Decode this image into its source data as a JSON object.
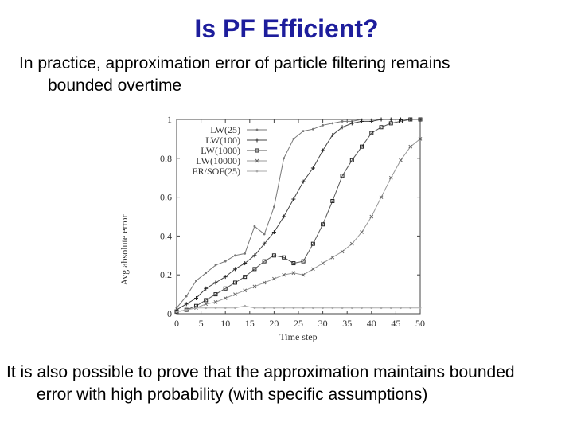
{
  "slide": {
    "title": "Is PF Efficient?",
    "para1": {
      "line1": "In practice, approximation error of particle filtering remains",
      "line2": "bounded overtime"
    },
    "para2": {
      "line1": "It is also possible to prove that the approximation maintains bounded",
      "line2": "error with high probability (with specific assumptions)"
    }
  },
  "chart_data": {
    "type": "line",
    "xlabel": "Time step",
    "ylabel": "Avg absolute error",
    "xlim": [
      0,
      50
    ],
    "ylim": [
      0,
      1
    ],
    "xticks": [
      0,
      5,
      10,
      15,
      20,
      25,
      30,
      35,
      40,
      45,
      50
    ],
    "yticks": [
      0,
      0.2,
      0.4,
      0.6,
      0.8,
      1
    ],
    "ytick_labels": [
      "0",
      "0.2",
      "0.4",
      "0.6",
      "0.8",
      "1"
    ],
    "legend_position": "top-left",
    "grid": false,
    "x": [
      0,
      2,
      4,
      6,
      8,
      10,
      12,
      14,
      16,
      18,
      20,
      22,
      24,
      26,
      28,
      30,
      32,
      34,
      36,
      38,
      40,
      42,
      44,
      46,
      48,
      50
    ],
    "series": [
      {
        "name": "LW(25)",
        "marker": "dot",
        "values": [
          0.03,
          0.09,
          0.17,
          0.21,
          0.25,
          0.27,
          0.3,
          0.31,
          0.45,
          0.41,
          0.55,
          0.8,
          0.9,
          0.94,
          0.95,
          0.97,
          0.98,
          0.99,
          0.99,
          1.0,
          1.0,
          1.0,
          1.0,
          1.0,
          1.0,
          1.0
        ]
      },
      {
        "name": "LW(100)",
        "marker": "plus",
        "values": [
          0.02,
          0.05,
          0.08,
          0.13,
          0.16,
          0.19,
          0.23,
          0.26,
          0.3,
          0.36,
          0.42,
          0.5,
          0.59,
          0.68,
          0.75,
          0.84,
          0.92,
          0.96,
          0.98,
          0.99,
          0.99,
          1.0,
          1.0,
          1.0,
          1.0,
          1.0
        ]
      },
      {
        "name": "LW(1000)",
        "marker": "square",
        "values": [
          0.01,
          0.02,
          0.04,
          0.07,
          0.1,
          0.13,
          0.16,
          0.19,
          0.23,
          0.27,
          0.3,
          0.29,
          0.26,
          0.27,
          0.36,
          0.46,
          0.58,
          0.71,
          0.79,
          0.86,
          0.93,
          0.96,
          0.98,
          0.99,
          1.0,
          1.0
        ]
      },
      {
        "name": "LW(10000)",
        "marker": "x",
        "values": [
          0.01,
          0.02,
          0.03,
          0.05,
          0.06,
          0.08,
          0.1,
          0.12,
          0.14,
          0.16,
          0.18,
          0.2,
          0.21,
          0.2,
          0.23,
          0.26,
          0.29,
          0.32,
          0.36,
          0.42,
          0.5,
          0.6,
          0.7,
          0.79,
          0.86,
          0.9
        ]
      },
      {
        "name": "ER/SOF(25)",
        "marker": "dot",
        "values": [
          0.01,
          0.02,
          0.03,
          0.03,
          0.03,
          0.03,
          0.03,
          0.04,
          0.03,
          0.03,
          0.03,
          0.03,
          0.03,
          0.03,
          0.03,
          0.03,
          0.03,
          0.03,
          0.03,
          0.03,
          0.03,
          0.03,
          0.03,
          0.03,
          0.03,
          0.03
        ]
      }
    ]
  }
}
